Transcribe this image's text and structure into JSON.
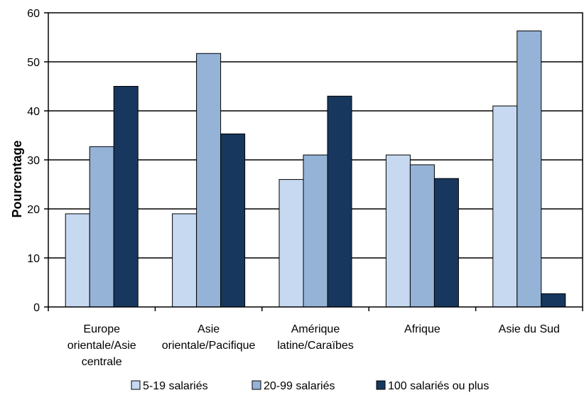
{
  "chart_data": {
    "type": "bar",
    "ylabel": "Pourcentage",
    "ylim": [
      0,
      60
    ],
    "yticks": [
      0,
      10,
      20,
      30,
      40,
      50,
      60
    ],
    "grid": true,
    "legend_position": "bottom",
    "categories": [
      [
        "Europe",
        "orientale/Asie",
        "centrale"
      ],
      [
        "Asie",
        "orientale/Pacifique"
      ],
      [
        "Amérique",
        "latine/Caraïbes"
      ],
      [
        "Afrique"
      ],
      [
        "Asie du Sud"
      ]
    ],
    "series": [
      {
        "name": "5-19 salariés",
        "color": "#c6d9f1",
        "values": [
          19,
          19,
          26,
          31,
          41
        ]
      },
      {
        "name": "20-99 salariés",
        "color": "#95b3d7",
        "values": [
          32.7,
          51.7,
          31,
          29,
          56.3
        ]
      },
      {
        "name": "100 salariés ou plus",
        "color": "#17375e",
        "values": [
          45,
          35.3,
          43,
          26.2,
          2.7
        ]
      }
    ]
  }
}
